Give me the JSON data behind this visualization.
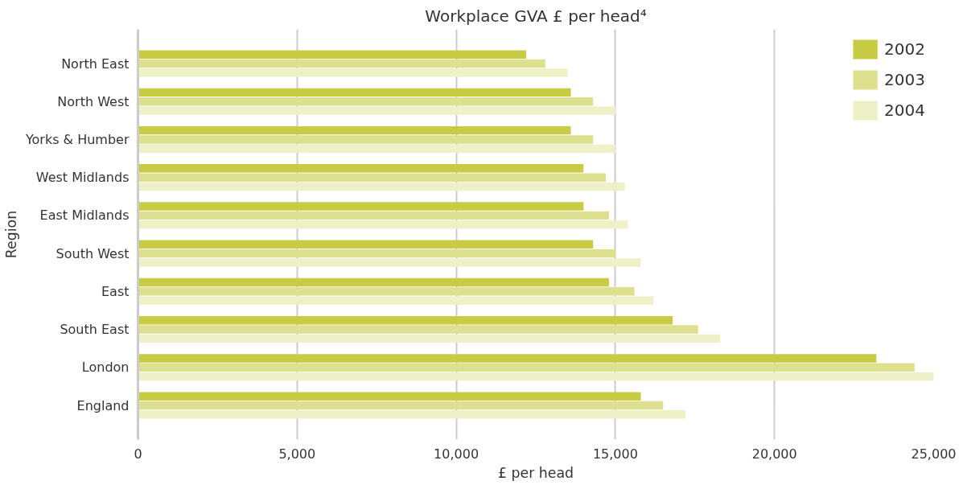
{
  "chart_data": {
    "type": "bar",
    "orientation": "horizontal",
    "title": "Workplace GVA £ per head⁴",
    "xlabel": "£ per head",
    "ylabel": "Region",
    "categories": [
      "North East",
      "North West",
      "Yorks & Humber",
      "West Midlands",
      "East Midlands",
      "South West",
      "East",
      "South East",
      "London",
      "England"
    ],
    "series": [
      {
        "name": "2002",
        "color": "#c8cc44",
        "values": [
          12200,
          13600,
          13600,
          14000,
          14000,
          14300,
          14800,
          16800,
          23200,
          15800
        ]
      },
      {
        "name": "2003",
        "color": "#dde08f",
        "values": [
          12800,
          14300,
          14300,
          14700,
          14800,
          15000,
          15600,
          17600,
          24400,
          16500
        ]
      },
      {
        "name": "2004",
        "color": "#eef0c8",
        "values": [
          13500,
          15000,
          15000,
          15300,
          15400,
          15800,
          16200,
          18300,
          25000,
          17200
        ]
      }
    ],
    "xlim": [
      0,
      25000
    ],
    "xticks": [
      0,
      {
        "value": 5000,
        "label": "5,000"
      },
      {
        "value": 10000,
        "label": "10,000"
      },
      {
        "value": 15000,
        "label": "15,000"
      },
      {
        "value": 20000,
        "label": "20,000"
      },
      {
        "value": 25000,
        "label": "25,000"
      }
    ],
    "grid": "x",
    "legend": "top right"
  }
}
